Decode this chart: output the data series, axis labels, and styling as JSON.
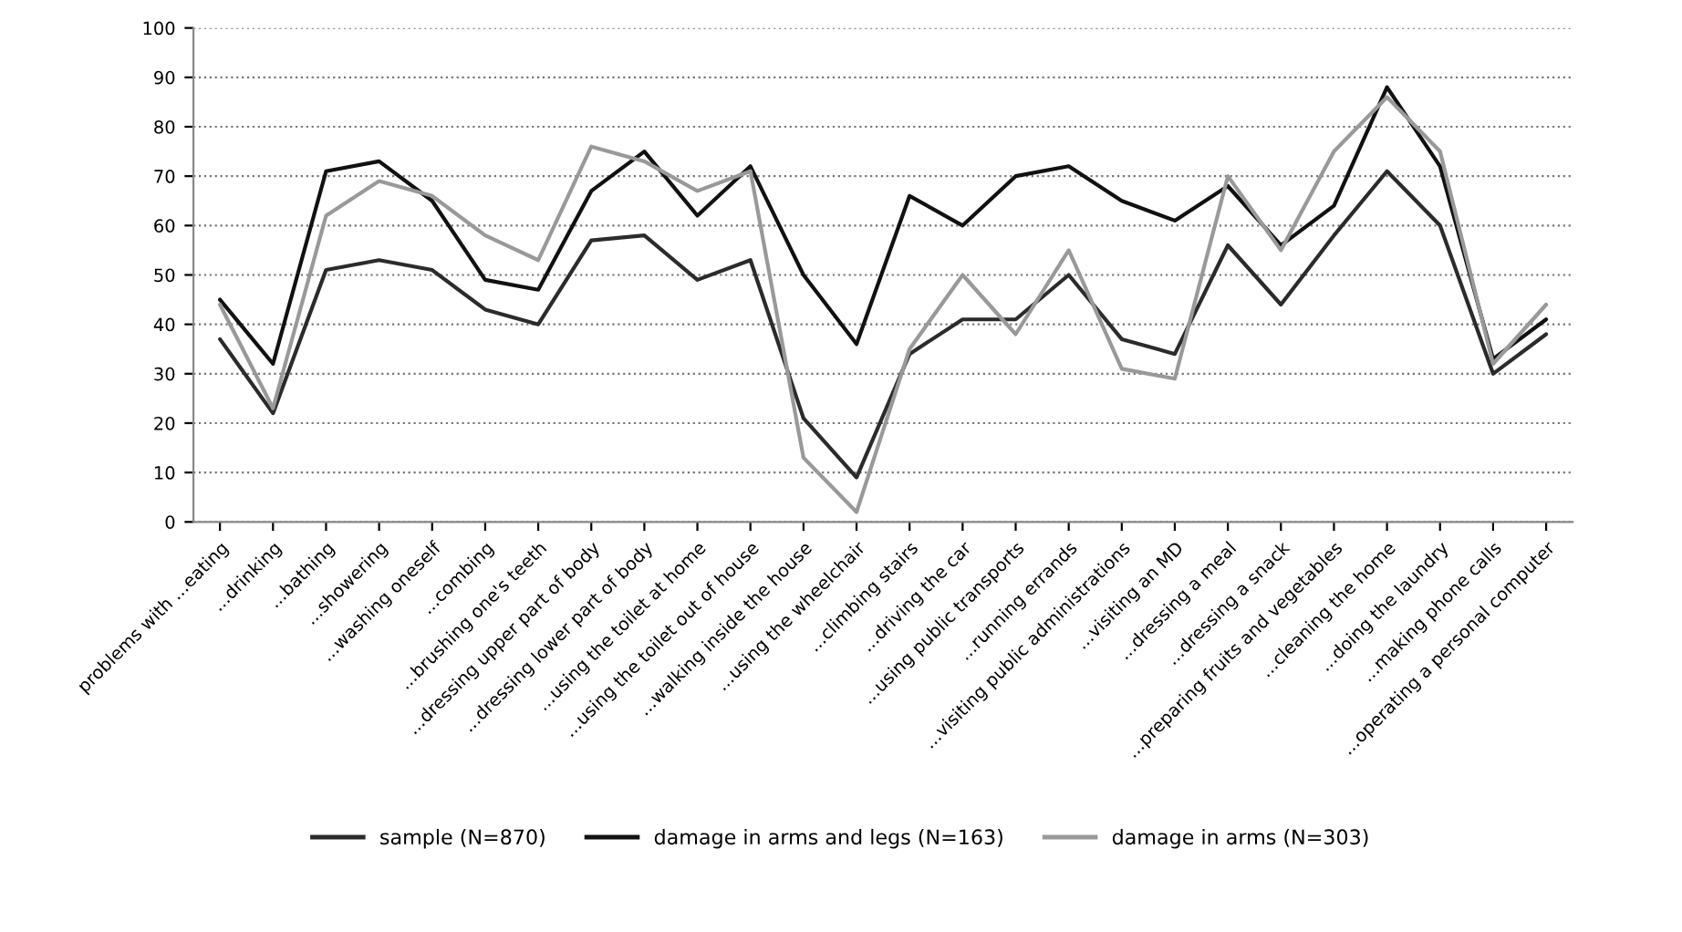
{
  "chart_data": {
    "type": "line",
    "categories": [
      "problems with ...eating",
      "...drinking",
      "...bathing",
      "...showering",
      "...washing oneself",
      "...combing",
      "...brushing one's teeth",
      "...dressing upper part of body",
      "...dressing lower part of body",
      "...using the toilet at home",
      "...using the toilet out of house",
      "...walking inside the house",
      "...using the wheelchair",
      "...climbing stairs",
      "...driving the car",
      "...using public transports",
      "...running errands",
      "...visiting public administrations",
      "...visiting an MD",
      "...dressing a meal",
      "...dressing a snack",
      "...preparing fruits and vegetables",
      "...cleaning the home",
      "...doing the laundry",
      "...making phone calls",
      "...operating a personal computer"
    ],
    "series": [
      {
        "name": "sample (N=870)",
        "color": "#2b2b2b",
        "values": [
          37,
          22,
          51,
          53,
          51,
          43,
          40,
          57,
          58,
          49,
          53,
          21,
          9,
          34,
          41,
          41,
          50,
          37,
          34,
          56,
          44,
          58,
          71,
          60,
          30,
          38
        ]
      },
      {
        "name": "damage in arms and legs (N=163)",
        "color": "#111111",
        "values": [
          45,
          32,
          71,
          73,
          65,
          49,
          47,
          67,
          75,
          62,
          72,
          50,
          36,
          66,
          60,
          70,
          72,
          65,
          61,
          68,
          56,
          64,
          88,
          72,
          33,
          41
        ]
      },
      {
        "name": "damage in arms (N=303)",
        "color": "#999999",
        "values": [
          44,
          23,
          62,
          69,
          66,
          58,
          53,
          76,
          73,
          67,
          71,
          13,
          2,
          35,
          50,
          38,
          55,
          31,
          29,
          70,
          55,
          75,
          86,
          75,
          32,
          44
        ]
      }
    ],
    "ylim": [
      0,
      100
    ],
    "yticks": [
      0,
      10,
      20,
      30,
      40,
      50,
      60,
      70,
      80,
      90,
      100
    ],
    "grid": "y",
    "legend": "bottom",
    "marker": "none",
    "line_style": "solid"
  }
}
